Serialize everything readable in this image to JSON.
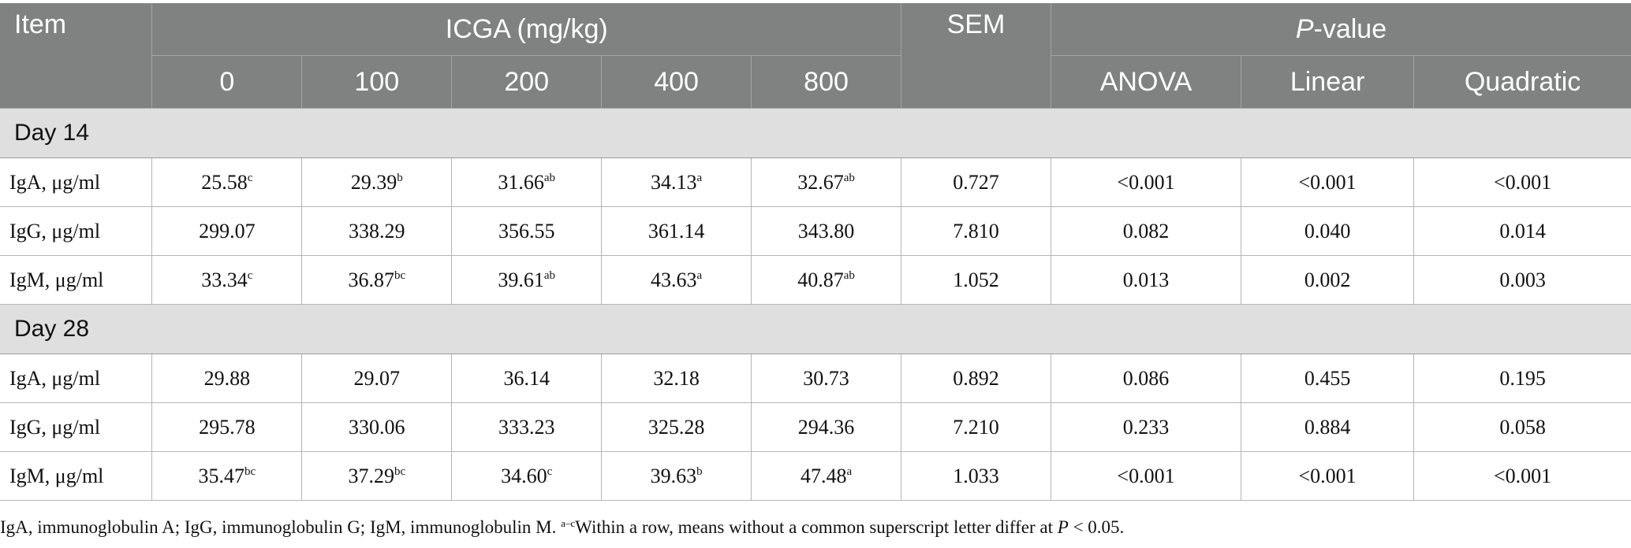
{
  "header": {
    "item": "Item",
    "icga": "ICGA (mg/kg)",
    "sem": "SEM",
    "p_value_italic": "P",
    "p_value_rest": "-value",
    "doses": [
      "0",
      "100",
      "200",
      "400",
      "800"
    ],
    "tests": [
      "ANOVA",
      "Linear",
      "Quadratic"
    ]
  },
  "sections": [
    {
      "title": "Day 14",
      "rows": [
        {
          "item": "IgA, μg/ml",
          "vals": [
            "25.58",
            "29.39",
            "31.66",
            "34.13",
            "32.67"
          ],
          "sups": [
            "c",
            "b",
            "ab",
            "a",
            "ab"
          ],
          "sem": "0.727",
          "p": [
            "<0.001",
            "<0.001",
            "<0.001"
          ]
        },
        {
          "item": "IgG, μg/ml",
          "vals": [
            "299.07",
            "338.29",
            "356.55",
            "361.14",
            "343.80"
          ],
          "sups": [
            "",
            "",
            "",
            "",
            ""
          ],
          "sem": "7.810",
          "p": [
            "0.082",
            "0.040",
            "0.014"
          ]
        },
        {
          "item": "IgM, μg/ml",
          "vals": [
            "33.34",
            "36.87",
            "39.61",
            "43.63",
            "40.87"
          ],
          "sups": [
            "c",
            "bc",
            "ab",
            "a",
            "ab"
          ],
          "sem": "1.052",
          "p": [
            "0.013",
            "0.002",
            "0.003"
          ]
        }
      ]
    },
    {
      "title": "Day 28",
      "rows": [
        {
          "item": "IgA, μg/ml",
          "vals": [
            "29.88",
            "29.07",
            "36.14",
            "32.18",
            "30.73"
          ],
          "sups": [
            "",
            "",
            "",
            "",
            ""
          ],
          "sem": "0.892",
          "p": [
            "0.086",
            "0.455",
            "0.195"
          ]
        },
        {
          "item": "IgG, μg/ml",
          "vals": [
            "295.78",
            "330.06",
            "333.23",
            "325.28",
            "294.36"
          ],
          "sups": [
            "",
            "",
            "",
            "",
            ""
          ],
          "sem": "7.210",
          "p": [
            "0.233",
            "0.884",
            "0.058"
          ]
        },
        {
          "item": "IgM, μg/ml",
          "vals": [
            "35.47",
            "37.29",
            "34.60",
            "39.63",
            "47.48"
          ],
          "sups": [
            "bc",
            "bc",
            "c",
            "b",
            "a"
          ],
          "sem": "1.033",
          "p": [
            "<0.001",
            "<0.001",
            "<0.001"
          ]
        }
      ]
    }
  ],
  "footnote": {
    "text": "IgA, immunoglobulin A; IgG, immunoglobulin G; IgM, immunoglobulin M.",
    "sup": "a–c",
    "text2": "Within a row, means without a common superscript letter differ at",
    "p_italic": "P",
    "text3": "< 0.05."
  }
}
